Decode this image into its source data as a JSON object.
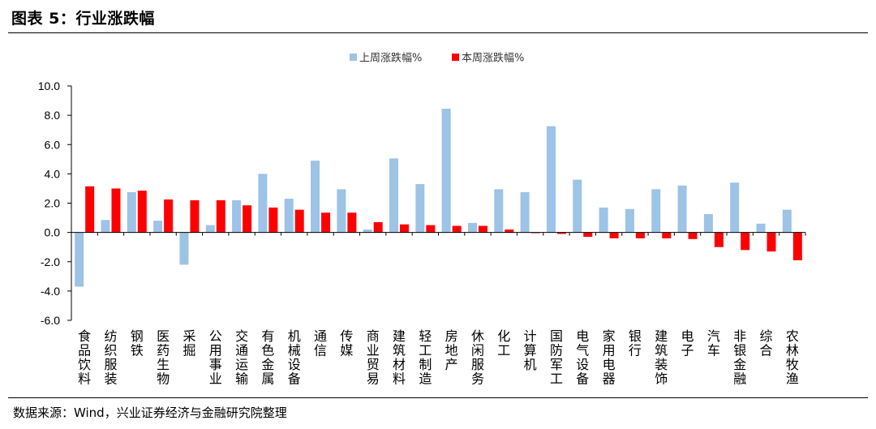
{
  "figure": {
    "title": "图表 5：行业涨跌幅",
    "source": "数据来源：Wind，兴业证券经济与金融研究院整理"
  },
  "chart_data": {
    "type": "bar",
    "title": "",
    "xlabel": "",
    "ylabel": "",
    "ylim": [
      -6.0,
      10.0
    ],
    "yticks": [
      "10.0",
      "8.0",
      "6.0",
      "4.0",
      "2.0",
      "0.0",
      "-2.0",
      "-4.0",
      "-6.0"
    ],
    "legend_position": "top-center",
    "grid": false,
    "categories": [
      "食品饮料",
      "纺织服装",
      "钢铁",
      "医药生物",
      "采掘",
      "公用事业",
      "交通运输",
      "有色金属",
      "机械设备",
      "通信",
      "传媒",
      "商业贸易",
      "建筑材料",
      "轻工制造",
      "房地产",
      "休闲服务",
      "化工",
      "计算机",
      "国防军工",
      "电气设备",
      "家用电器",
      "银行",
      "建筑装饰",
      "电子",
      "汽车",
      "非银金融",
      "综合",
      "农林牧渔"
    ],
    "series": [
      {
        "name": "上周涨跌幅%",
        "color": "#9DC3E6",
        "values": [
          -3.7,
          0.85,
          2.75,
          0.8,
          -2.2,
          0.5,
          2.2,
          4.0,
          2.3,
          4.9,
          2.95,
          0.2,
          5.05,
          3.3,
          8.45,
          0.65,
          2.95,
          2.75,
          7.25,
          3.6,
          1.7,
          1.6,
          2.95,
          3.2,
          1.25,
          3.4,
          0.6,
          1.55
        ]
      },
      {
        "name": "本周涨跌幅%",
        "color": "#FF0000",
        "values": [
          3.15,
          3.0,
          2.85,
          2.25,
          2.2,
          2.2,
          1.85,
          1.7,
          1.55,
          1.35,
          1.35,
          0.7,
          0.55,
          0.5,
          0.45,
          0.45,
          0.2,
          -0.05,
          -0.1,
          -0.3,
          -0.4,
          -0.4,
          -0.4,
          -0.45,
          -1.0,
          -1.2,
          -1.3,
          -1.9
        ]
      }
    ]
  }
}
